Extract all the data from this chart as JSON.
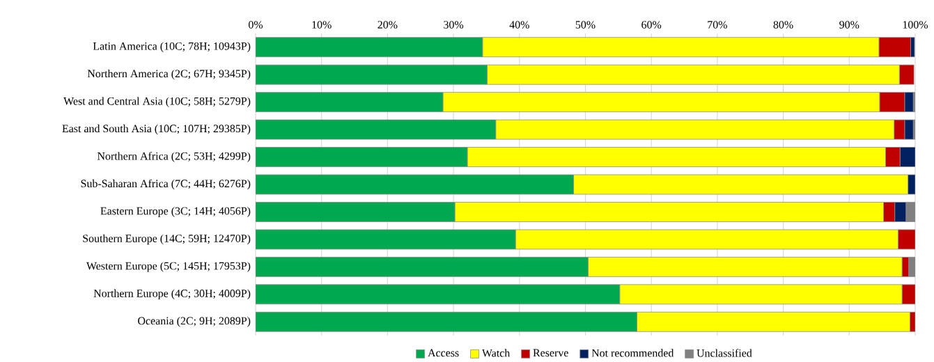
{
  "chart_data": {
    "type": "bar",
    "orientation": "horizontal",
    "stacked": true,
    "categories": [
      "Latin America (10C; 78H; 10943P)",
      "Northern America (2C; 67H; 9345P)",
      "West and Central Asia (10C; 58H; 5279P)",
      "East and South Asia (10C; 107H; 29385P)",
      "Northern Africa (2C; 53H; 4299P)",
      "Sub-Saharan Africa (7C; 44H; 6276P)",
      "Eastern Europe (3C; 14H; 4056P)",
      "Southern Europe (14C; 59H; 12470P)",
      "Western Europe (5C; 145H; 17953P)",
      "Northern Europe (4C; 30H; 4009P)",
      "Oceania (2C; 9H; 2089P)"
    ],
    "series": [
      {
        "name": "Access",
        "color": "#00a84f",
        "values": [
          34.4,
          35.1,
          28.4,
          36.4,
          32.1,
          48.2,
          30.2,
          39.4,
          50.4,
          55.2,
          57.8
        ]
      },
      {
        "name": "Watch",
        "color": "#ffff00",
        "values": [
          60.1,
          62.5,
          66.2,
          60.4,
          63.4,
          50.7,
          65.0,
          58.0,
          47.6,
          42.8,
          41.4
        ]
      },
      {
        "name": "Reserve",
        "color": "#c00000",
        "values": [
          4.8,
          2.2,
          3.8,
          1.6,
          2.2,
          0,
          1.7,
          2.6,
          1.0,
          2.0,
          0.8
        ]
      },
      {
        "name": "Not recommended",
        "color": "#002060",
        "values": [
          0.6,
          null,
          1.3,
          1.3,
          2.3,
          1.1,
          1.7,
          0,
          0,
          0,
          0
        ]
      },
      {
        "name": "Unclassified",
        "color": "#808080",
        "values": [
          null,
          0,
          0.3,
          0.3,
          0,
          0,
          1.4,
          0,
          1.0,
          0,
          0
        ]
      }
    ],
    "xlim": [
      0,
      100
    ],
    "xticks": [
      {
        "value": 0,
        "label": "0%"
      },
      {
        "value": 10,
        "label": "10%"
      },
      {
        "value": 20,
        "label": "20%"
      },
      {
        "value": 30,
        "label": "30%"
      },
      {
        "value": 40,
        "label": "40%"
      },
      {
        "value": 50,
        "label": "50%"
      },
      {
        "value": 60,
        "label": "60%"
      },
      {
        "value": 70,
        "label": "70%"
      },
      {
        "value": 80,
        "label": "80%"
      },
      {
        "value": 90,
        "label": "90%"
      },
      {
        "value": 100,
        "label": "100%"
      }
    ],
    "grid": "x",
    "legend": "bottom"
  }
}
